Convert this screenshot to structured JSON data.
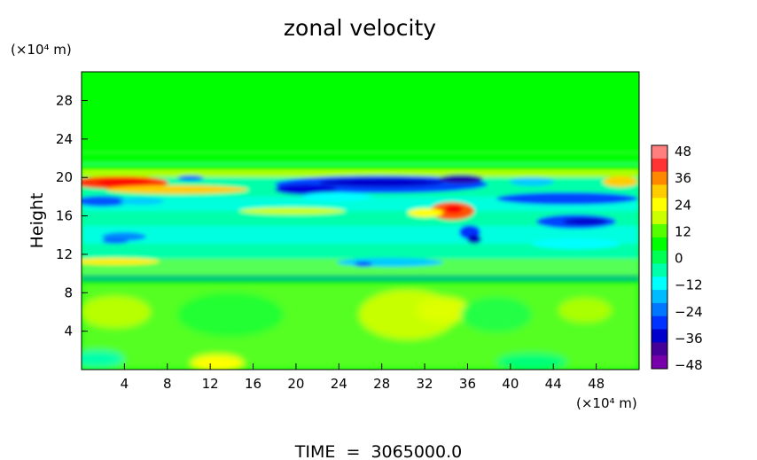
{
  "chart_data": {
    "type": "heatmap",
    "title": "zonal velocity",
    "ylabel": "Height",
    "xlabel": "",
    "x_unit": "(×10⁴ m)",
    "y_unit": "(×10⁴ m)",
    "xlim": [
      0,
      52
    ],
    "ylim": [
      0,
      31
    ],
    "x_ticks": [
      "4",
      "8",
      "12",
      "16",
      "20",
      "24",
      "28",
      "32",
      "36",
      "40",
      "44",
      "48"
    ],
    "y_ticks": [
      "4",
      "8",
      "12",
      "16",
      "20",
      "24",
      "28"
    ],
    "colorbar": {
      "min": -48,
      "max": 48,
      "ticks": [
        "48",
        "36",
        "24",
        "12",
        "0",
        "−12",
        "−24",
        "−36",
        "−48"
      ],
      "colors": [
        "#ff7f7f",
        "#ff3333",
        "#ff8800",
        "#ffcc00",
        "#ffff00",
        "#ccff00",
        "#55ff00",
        "#00ff00",
        "#00ff55",
        "#00ffaa",
        "#00ffff",
        "#00bbff",
        "#0077ff",
        "#0033ff",
        "#0000cc",
        "#440099",
        "#7700aa"
      ]
    },
    "annotation": "TIME  =  3065000.0"
  }
}
